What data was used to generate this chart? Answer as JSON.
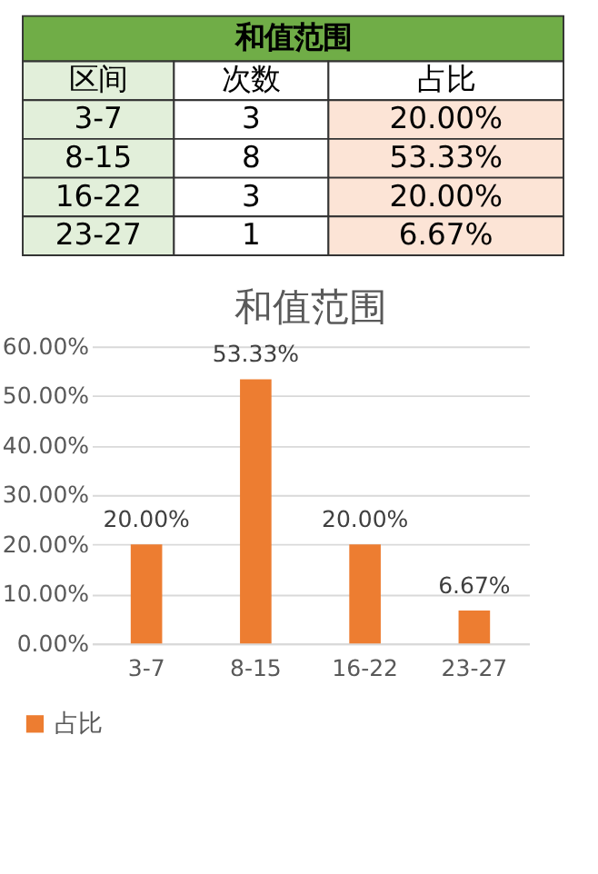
{
  "chart_data": [
    {
      "type": "other",
      "title": "和值范围",
      "xlabel": "区间",
      "categories": [
        "3-7",
        "8-15",
        "16-22",
        "23-27"
      ],
      "data_labels": true,
      "series": [
        {
          "name": "次数",
          "values": [
            3,
            8,
            3,
            1
          ]
        },
        {
          "name": "占比",
          "values": [
            20,
            53.33,
            20,
            6.67
          ],
          "value_labels": [
            "20.00%",
            "53.33%",
            "20.00%",
            "6.67%"
          ]
        }
      ]
    },
    {
      "type": "bar",
      "title": "和值范围",
      "categories": [
        "3-7",
        "8-15",
        "16-22",
        "23-27"
      ],
      "series": [
        {
          "name": "占比",
          "color": "#ed7d31",
          "values": [
            20,
            53.33,
            20,
            6.67
          ],
          "value_labels": [
            "20.00%",
            "53.33%",
            "20.00%",
            "6.67%"
          ]
        }
      ],
      "ylim": [
        0,
        60
      ],
      "yticks": [
        {
          "value": 0,
          "label": "0.00%"
        },
        {
          "value": 10,
          "label": "10.00%"
        },
        {
          "value": 20,
          "label": "20.00%"
        },
        {
          "value": 30,
          "label": "30.00%"
        },
        {
          "value": 40,
          "label": "40.00%"
        },
        {
          "value": 50,
          "label": "50.00%"
        },
        {
          "value": 60,
          "label": "60.00%"
        }
      ],
      "grid": "y",
      "legend": "bottom"
    }
  ]
}
